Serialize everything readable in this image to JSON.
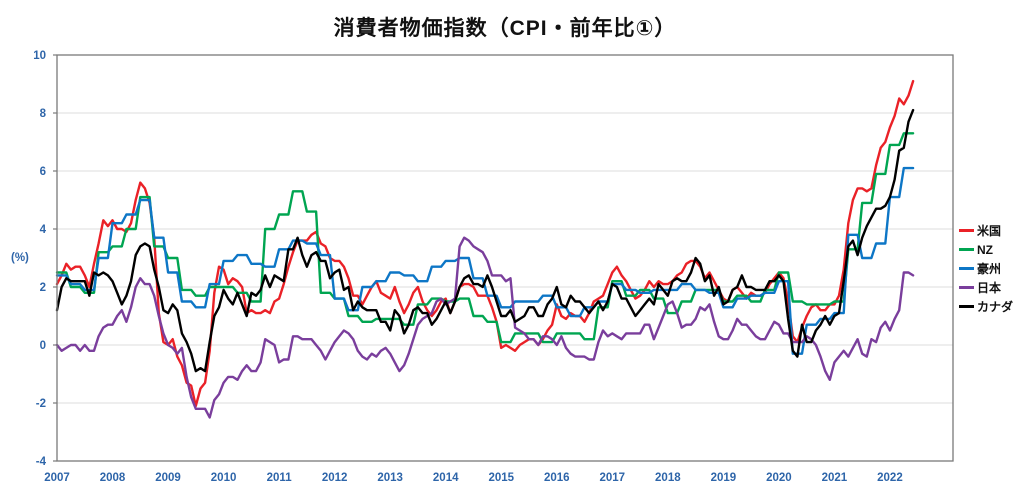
{
  "page": {
    "title": "消費者物価指数（CPI・前年比①）"
  },
  "chart_data": {
    "type": "line",
    "title": "消費者物価指数（CPI・前年比①）",
    "xlabel": "",
    "ylabel": "(%)",
    "ylim": [
      -4,
      10
    ],
    "yticks": [
      10,
      8,
      6,
      4,
      2,
      0,
      -2,
      -4
    ],
    "x_years": [
      2007,
      2008,
      2009,
      2010,
      2011,
      2012,
      2013,
      2014,
      2015,
      2016,
      2017,
      2018,
      2019,
      2020,
      2021,
      2022
    ],
    "x_range": "2007-01 to 2022-06",
    "grid": "horizontal",
    "legend_position": "right",
    "colors": {
      "axis_labels": "#2e65a9",
      "gridline": "#dcdcdc",
      "plot_border": "#7a7a7a",
      "title_text": "#111111"
    },
    "series": [
      {
        "name": "米国",
        "key": "us",
        "color": "#ea2127",
        "freq": "monthly",
        "values": [
          2.1,
          2.4,
          2.8,
          2.6,
          2.7,
          2.7,
          2.4,
          2.0,
          2.8,
          3.5,
          4.3,
          4.1,
          4.3,
          4.0,
          4.0,
          3.9,
          4.2,
          5.0,
          5.6,
          5.4,
          4.9,
          3.7,
          1.1,
          0.1,
          0.0,
          0.2,
          -0.4,
          -0.7,
          -1.3,
          -1.4,
          -2.1,
          -1.5,
          -1.3,
          -0.2,
          1.8,
          2.7,
          2.6,
          2.1,
          2.3,
          2.2,
          2.0,
          1.1,
          1.2,
          1.1,
          1.1,
          1.2,
          1.1,
          1.5,
          1.6,
          2.1,
          2.7,
          3.2,
          3.6,
          3.6,
          3.6,
          3.8,
          3.9,
          3.5,
          3.4,
          3.0,
          2.9,
          2.9,
          2.7,
          2.3,
          1.7,
          1.7,
          1.4,
          1.7,
          2.0,
          2.2,
          1.8,
          1.7,
          1.6,
          2.0,
          1.5,
          1.1,
          1.4,
          1.8,
          2.0,
          1.5,
          1.2,
          1.0,
          1.2,
          1.5,
          1.6,
          1.1,
          1.5,
          2.0,
          2.1,
          2.1,
          2.0,
          1.7,
          1.7,
          1.7,
          1.3,
          0.8,
          -0.1,
          0.0,
          -0.1,
          -0.2,
          0.0,
          0.1,
          0.2,
          0.2,
          0.0,
          0.2,
          0.5,
          0.7,
          1.4,
          1.0,
          0.9,
          1.1,
          1.0,
          1.0,
          0.8,
          1.1,
          1.5,
          1.6,
          1.7,
          2.1,
          2.5,
          2.7,
          2.4,
          2.2,
          1.9,
          1.6,
          1.7,
          1.9,
          2.2,
          2.0,
          2.2,
          2.1,
          2.1,
          2.2,
          2.4,
          2.5,
          2.8,
          2.9,
          2.9,
          2.7,
          2.3,
          2.5,
          2.2,
          1.9,
          1.6,
          1.5,
          1.9,
          2.0,
          1.8,
          1.6,
          1.8,
          1.7,
          1.7,
          1.8,
          2.1,
          2.3,
          2.5,
          2.3,
          1.5,
          0.3,
          0.1,
          0.6,
          1.0,
          1.3,
          1.4,
          1.2,
          1.2,
          1.4,
          1.4,
          1.7,
          2.6,
          4.2,
          5.0,
          5.4,
          5.4,
          5.3,
          5.4,
          6.2,
          6.8,
          7.0,
          7.5,
          7.9,
          8.5,
          8.3,
          8.6,
          9.1
        ]
      },
      {
        "name": "NZ",
        "key": "nz",
        "color": "#00a551",
        "freq": "quarterly",
        "values": [
          2.5,
          2.0,
          1.8,
          3.2,
          3.4,
          4.0,
          5.1,
          3.4,
          3.0,
          1.9,
          1.7,
          2.0,
          2.0,
          1.8,
          1.5,
          4.0,
          4.5,
          5.3,
          4.6,
          1.8,
          1.6,
          1.0,
          0.8,
          0.9,
          0.9,
          0.7,
          1.4,
          1.6,
          1.5,
          1.6,
          1.0,
          0.8,
          0.1,
          0.4,
          0.4,
          0.1,
          0.4,
          0.4,
          0.2,
          1.3,
          2.2,
          1.7,
          1.9,
          1.6,
          1.1,
          1.5,
          1.9,
          1.9,
          1.5,
          1.7,
          1.5,
          1.9,
          2.5,
          1.5,
          1.4,
          1.4,
          1.5,
          3.3,
          4.9,
          5.9,
          6.9,
          7.3
        ]
      },
      {
        "name": "豪州",
        "key": "au",
        "color": "#0d76c6",
        "freq": "quarterly",
        "values": [
          2.4,
          2.1,
          1.9,
          3.0,
          4.2,
          4.5,
          5.0,
          3.7,
          2.5,
          1.5,
          1.3,
          2.1,
          2.9,
          3.1,
          2.8,
          2.7,
          3.3,
          3.6,
          3.5,
          3.1,
          1.6,
          1.2,
          2.0,
          2.2,
          2.5,
          2.4,
          2.2,
          2.7,
          2.9,
          3.0,
          2.3,
          1.7,
          1.3,
          1.5,
          1.5,
          1.7,
          1.3,
          1.0,
          1.3,
          1.5,
          2.1,
          1.9,
          1.8,
          1.9,
          1.9,
          2.1,
          1.9,
          1.8,
          1.3,
          1.6,
          1.7,
          1.8,
          2.2,
          -0.3,
          0.7,
          0.9,
          1.1,
          3.8,
          3.0,
          3.5,
          5.1,
          6.1
        ]
      },
      {
        "name": "日本",
        "key": "jp",
        "color": "#7a3e9c",
        "freq": "monthly",
        "values": [
          0.0,
          -0.2,
          -0.1,
          0.0,
          0.0,
          -0.2,
          0.0,
          -0.2,
          -0.2,
          0.3,
          0.6,
          0.7,
          0.7,
          1.0,
          1.2,
          0.8,
          1.3,
          2.0,
          2.3,
          2.1,
          2.1,
          1.7,
          1.0,
          0.4,
          0.0,
          -0.1,
          -0.3,
          -0.1,
          -1.1,
          -1.8,
          -2.2,
          -2.2,
          -2.2,
          -2.5,
          -1.9,
          -1.7,
          -1.3,
          -1.1,
          -1.1,
          -1.2,
          -0.9,
          -0.7,
          -0.9,
          -0.9,
          -0.6,
          0.2,
          0.1,
          0.0,
          -0.6,
          -0.5,
          -0.5,
          0.3,
          0.3,
          0.2,
          0.2,
          0.2,
          0.0,
          -0.2,
          -0.5,
          -0.2,
          0.1,
          0.3,
          0.5,
          0.4,
          0.2,
          -0.2,
          -0.4,
          -0.5,
          -0.3,
          -0.4,
          -0.2,
          -0.1,
          -0.3,
          -0.6,
          -0.9,
          -0.7,
          -0.3,
          0.2,
          0.7,
          0.9,
          1.0,
          1.1,
          1.5,
          1.6,
          1.4,
          1.5,
          1.6,
          3.4,
          3.7,
          3.6,
          3.4,
          3.3,
          3.2,
          2.9,
          2.4,
          2.4,
          2.4,
          2.2,
          2.3,
          0.6,
          0.5,
          0.4,
          0.2,
          0.2,
          0.0,
          0.3,
          0.3,
          0.2,
          0.0,
          0.3,
          -0.1,
          -0.3,
          -0.4,
          -0.4,
          -0.4,
          -0.5,
          -0.5,
          0.1,
          0.5,
          0.3,
          0.4,
          0.3,
          0.2,
          0.4,
          0.4,
          0.4,
          0.4,
          0.7,
          0.7,
          0.2,
          0.6,
          1.0,
          1.4,
          1.5,
          1.1,
          0.6,
          0.7,
          0.7,
          0.9,
          1.3,
          1.2,
          1.4,
          0.8,
          0.3,
          0.2,
          0.2,
          0.5,
          0.9,
          0.7,
          0.7,
          0.5,
          0.3,
          0.2,
          0.2,
          0.5,
          0.8,
          0.7,
          0.4,
          0.4,
          0.1,
          0.1,
          0.1,
          0.3,
          0.2,
          0.0,
          -0.4,
          -0.9,
          -1.2,
          -0.6,
          -0.4,
          -0.2,
          -0.4,
          -0.1,
          0.2,
          -0.3,
          -0.4,
          0.2,
          0.1,
          0.6,
          0.8,
          0.5,
          0.9,
          1.2,
          2.5,
          2.5,
          2.4
        ]
      },
      {
        "name": "カナダ",
        "key": "ca",
        "color": "#000000",
        "freq": "monthly",
        "values": [
          1.2,
          2.0,
          2.3,
          2.2,
          2.2,
          2.2,
          2.2,
          1.7,
          2.5,
          2.4,
          2.5,
          2.4,
          2.2,
          1.8,
          1.4,
          1.7,
          2.2,
          3.1,
          3.4,
          3.5,
          3.4,
          2.6,
          2.0,
          1.2,
          1.1,
          1.4,
          1.2,
          0.4,
          0.1,
          -0.3,
          -0.9,
          -0.8,
          -0.9,
          0.1,
          1.0,
          1.3,
          1.9,
          1.6,
          1.4,
          1.8,
          1.4,
          1.0,
          1.8,
          1.7,
          1.9,
          2.4,
          2.0,
          2.4,
          2.3,
          2.2,
          3.3,
          3.3,
          3.7,
          3.1,
          2.7,
          3.1,
          3.2,
          2.9,
          2.9,
          2.3,
          2.5,
          2.6,
          1.9,
          2.0,
          1.2,
          1.5,
          1.3,
          1.2,
          1.2,
          1.2,
          0.8,
          0.8,
          0.5,
          1.2,
          1.0,
          0.4,
          0.7,
          1.2,
          1.3,
          1.1,
          1.1,
          0.7,
          0.9,
          1.2,
          1.5,
          1.1,
          1.5,
          2.0,
          2.3,
          2.4,
          2.1,
          2.1,
          2.0,
          2.4,
          2.0,
          1.5,
          1.0,
          1.0,
          1.2,
          0.8,
          0.9,
          1.0,
          1.3,
          1.3,
          1.0,
          1.0,
          1.4,
          1.6,
          2.0,
          1.4,
          1.3,
          1.7,
          1.5,
          1.5,
          1.3,
          1.1,
          1.3,
          1.5,
          1.2,
          1.5,
          2.1,
          2.0,
          1.6,
          1.6,
          1.3,
          1.0,
          1.2,
          1.4,
          1.6,
          1.4,
          2.1,
          1.9,
          1.7,
          2.2,
          2.3,
          2.2,
          2.2,
          2.5,
          3.0,
          2.8,
          2.2,
          2.4,
          1.7,
          2.0,
          1.4,
          1.5,
          1.9,
          2.0,
          2.4,
          2.0,
          2.0,
          1.9,
          1.9,
          1.9,
          2.2,
          2.2,
          2.4,
          2.2,
          0.9,
          -0.2,
          -0.4,
          0.7,
          0.1,
          0.1,
          0.5,
          0.7,
          1.0,
          0.7,
          1.0,
          1.1,
          2.2,
          3.4,
          3.6,
          3.1,
          3.7,
          4.1,
          4.4,
          4.7,
          4.7,
          4.8,
          5.1,
          5.7,
          6.7,
          6.8,
          7.7,
          8.1
        ]
      }
    ]
  }
}
